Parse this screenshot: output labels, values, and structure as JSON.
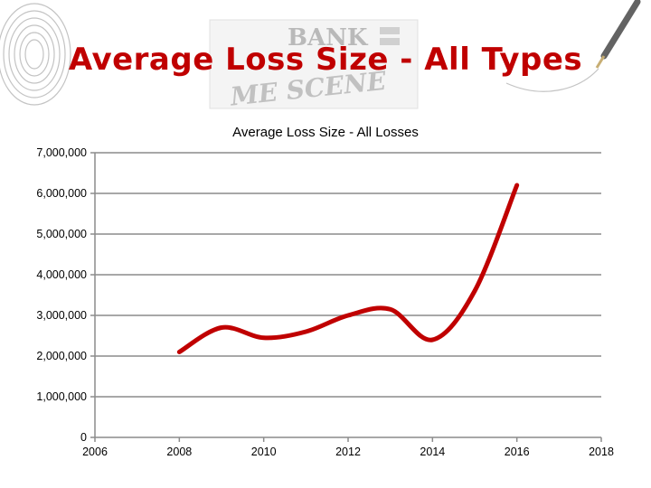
{
  "slide": {
    "title": "Average Loss Size - All Types",
    "logo_text": [
      "BANK",
      "ME SCENE"
    ]
  },
  "colors": {
    "title": "#c00000",
    "line": "#c00000",
    "grid": "#8c8c8c"
  },
  "chart_data": {
    "type": "line",
    "title": "Average Loss Size - All Losses",
    "xlabel": "",
    "ylabel": "",
    "xlim": [
      2006,
      2018
    ],
    "ylim": [
      0,
      7000000
    ],
    "x_ticks": [
      "2006",
      "2008",
      "2010",
      "2012",
      "2014",
      "2016",
      "2018"
    ],
    "y_ticks": [
      "0",
      "1,000,000",
      "2,000,000",
      "3,000,000",
      "4,000,000",
      "5,000,000",
      "6,000,000",
      "7,000,000"
    ],
    "grid": true,
    "legend": "none",
    "smooth": true,
    "series": [
      {
        "x": [
          2008,
          2009,
          2010,
          2011,
          2012,
          2013,
          2014,
          2015,
          2016
        ],
        "values": [
          2100000,
          2700000,
          2450000,
          2600000,
          3000000,
          3150000,
          2400000,
          3600000,
          6200000
        ]
      }
    ]
  }
}
